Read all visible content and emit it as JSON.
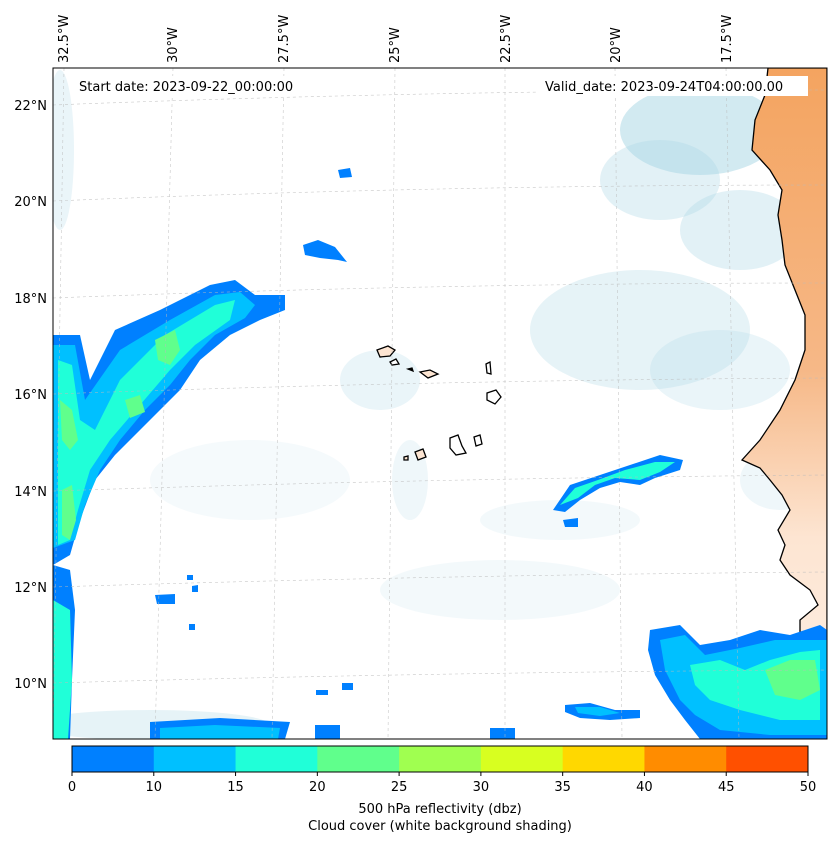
{
  "map": {
    "start_date_text": "Start date: 2023-09-22_00:00:00",
    "valid_date_text": "Valid_date: 2023-09-24T04:00:00.00",
    "lon_ticks": [
      "32.5°W",
      "30°W",
      "27.5°W",
      "25°W",
      "22.5°W",
      "20°W",
      "17.5°W"
    ],
    "lat_ticks": [
      "22°N",
      "20°N",
      "18°N",
      "16°N",
      "14°N",
      "12°N",
      "10°N"
    ],
    "colors": {
      "land_high": "#f4a460",
      "land_low": "#fde5d2",
      "cloud_shade": "#add8e6",
      "coastline": "#000000",
      "gridline": "#cccccc"
    }
  },
  "colorbar": {
    "ticks": [
      "0",
      "10",
      "15",
      "20",
      "25",
      "30",
      "35",
      "40",
      "45",
      "50"
    ],
    "colors": [
      "#0080ff",
      "#00c0ff",
      "#20ffd8",
      "#60ff8c",
      "#a0ff50",
      "#d8ff20",
      "#ffd800",
      "#ff8c00",
      "#ff5000"
    ],
    "label_line1": "500 hPa reflectivity (dbz)",
    "label_line2": "Cloud cover (white background shading)"
  }
}
